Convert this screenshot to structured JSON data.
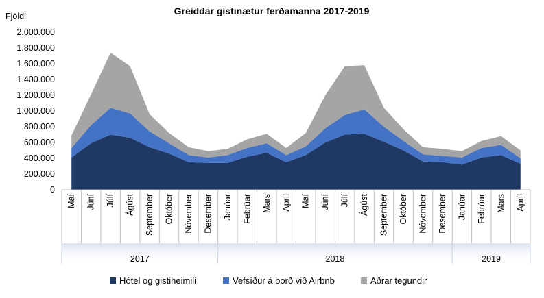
{
  "chart_data": {
    "type": "area",
    "stacked": true,
    "title": "Greiddar gistinætur ferðamanna 2017-2019",
    "ylabel": "Fjöldi",
    "ylim": [
      0,
      2000000
    ],
    "yticks": [
      "0",
      "200.000",
      "400.000",
      "600.000",
      "800.000",
      "1.000.000",
      "1.200.000",
      "1.400.000",
      "1.600.000",
      "1.800.000",
      "2.000.000"
    ],
    "categories": [
      "Maí",
      "Júní",
      "Júlí",
      "Ágúst",
      "September",
      "Október",
      "Nóvember",
      "Desember",
      "Janúar",
      "Febrúar",
      "Mars",
      "Apríl",
      "Maí",
      "Júní",
      "Júlí",
      "Ágúst",
      "September",
      "Október",
      "Nóvember",
      "Desember",
      "Janúar",
      "Febrúar",
      "Mars",
      "Apríl"
    ],
    "years": [
      {
        "label": "2017",
        "count": 8
      },
      {
        "label": "2018",
        "count": 12
      },
      {
        "label": "2019",
        "count": 4
      }
    ],
    "legend_position": "bottom",
    "series": [
      {
        "name": "Hótel og gistiheimili",
        "color": "#1f3864",
        "values": [
          410000,
          590000,
          700000,
          660000,
          540000,
          460000,
          350000,
          340000,
          340000,
          420000,
          470000,
          350000,
          440000,
          600000,
          700000,
          710000,
          610000,
          500000,
          360000,
          350000,
          320000,
          410000,
          440000,
          330000
        ]
      },
      {
        "name": "Vefsíður á borð við Airbnb",
        "color": "#4472c4",
        "values": [
          120000,
          230000,
          340000,
          310000,
          200000,
          130000,
          90000,
          70000,
          100000,
          110000,
          120000,
          90000,
          110000,
          180000,
          250000,
          310000,
          190000,
          120000,
          90000,
          80000,
          90000,
          120000,
          130000,
          70000
        ]
      },
      {
        "name": "Aðrar tegundir",
        "color": "#a5a5a5",
        "values": [
          160000,
          390000,
          700000,
          600000,
          220000,
          130000,
          100000,
          80000,
          80000,
          110000,
          120000,
          90000,
          170000,
          420000,
          620000,
          560000,
          240000,
          150000,
          90000,
          90000,
          80000,
          90000,
          110000,
          100000
        ]
      }
    ]
  }
}
